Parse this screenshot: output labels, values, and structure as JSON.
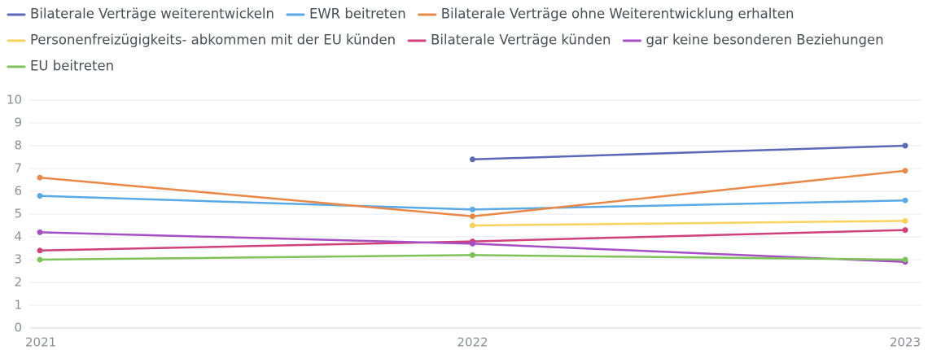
{
  "chart_data": {
    "type": "line",
    "x": [
      "2021",
      "2022",
      "2023"
    ],
    "series": [
      {
        "name": "Bilaterale Verträge weiterentwickeln",
        "color": "#5b67b8",
        "values": [
          null,
          7.4,
          8.0
        ]
      },
      {
        "name": "EWR beitreten",
        "color": "#5aa9e6",
        "values": [
          5.8,
          5.2,
          5.6
        ]
      },
      {
        "name": "Bilaterale Verträge ohne Weiterentwicklung erhalten",
        "color": "#e8894a",
        "values": [
          6.6,
          4.9,
          6.9
        ]
      },
      {
        "name": "Personenfreizügigkeits- abkommen mit der EU künden",
        "color": "#f9d25c",
        "values": [
          null,
          4.5,
          4.7
        ]
      },
      {
        "name": "Bilaterale Verträge künden",
        "color": "#d0407a",
        "values": [
          3.4,
          3.8,
          4.3
        ]
      },
      {
        "name": "gar keine besonderen Beziehungen",
        "color": "#a64fc4",
        "values": [
          4.2,
          3.7,
          2.9
        ]
      },
      {
        "name": "EU beitreten",
        "color": "#7dc35a",
        "values": [
          3.0,
          3.2,
          3.0
        ]
      }
    ],
    "ylim": [
      0,
      10
    ],
    "yticks": [
      0,
      1,
      2,
      3,
      4,
      5,
      6,
      7,
      8,
      9,
      10
    ],
    "grid": true
  }
}
